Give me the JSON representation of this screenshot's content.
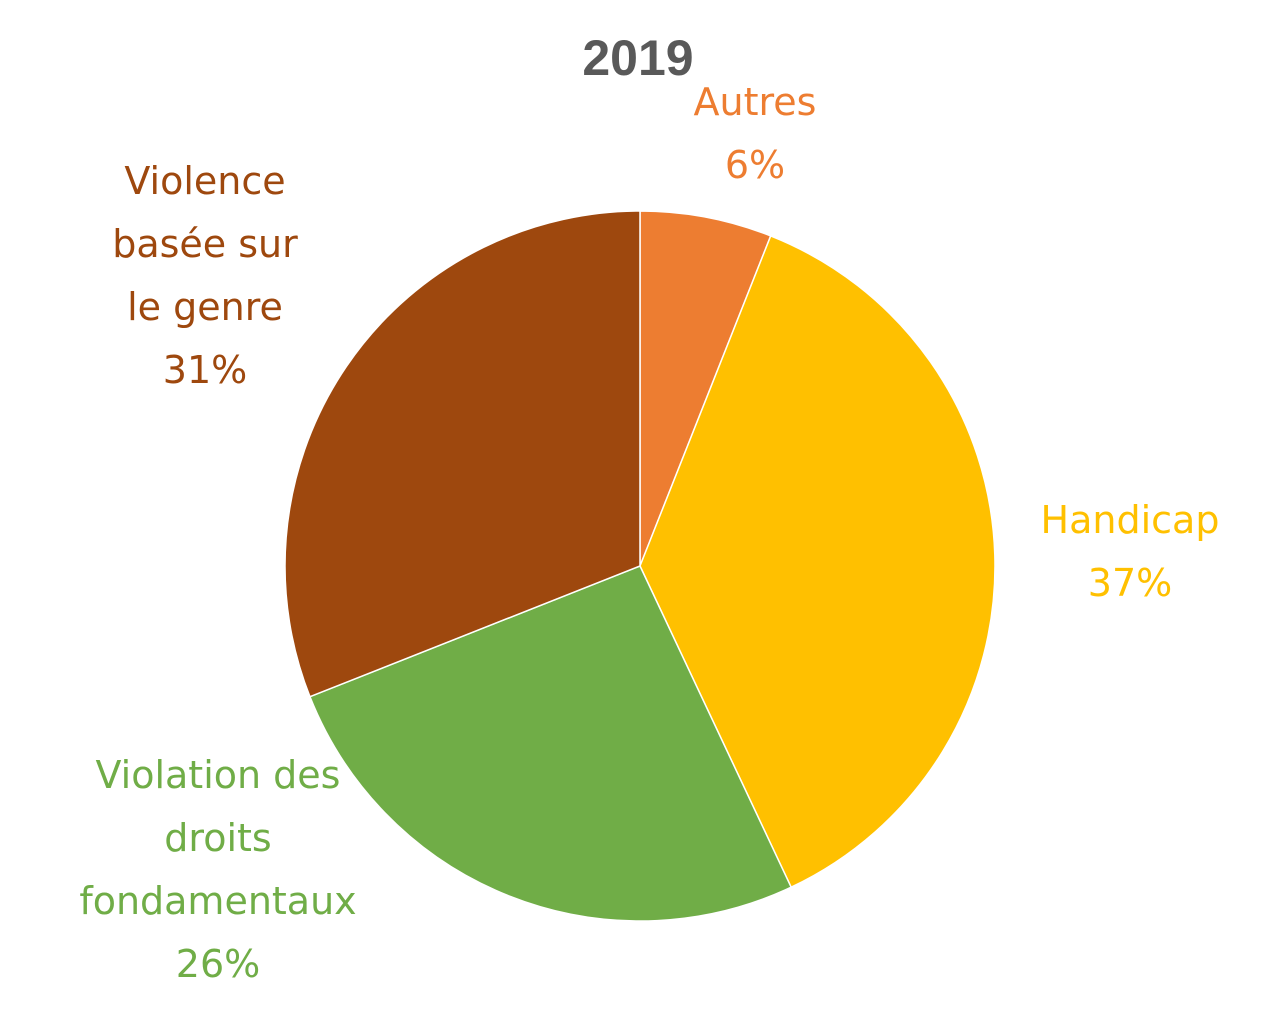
{
  "chart_data": {
    "type": "pie",
    "title": "2019",
    "start_angle_deg": 0,
    "direction": "clockwise",
    "slices": [
      {
        "name": "Autres",
        "value": 6,
        "percent_label": "6%",
        "color": "#ED7D31",
        "label_lines": [
          "Autres",
          "6%"
        ]
      },
      {
        "name": "Handicap",
        "value": 37,
        "percent_label": "37%",
        "color": "#FFC000",
        "label_lines": [
          "Handicap",
          "37%"
        ]
      },
      {
        "name": "Violation des droits fondamentaux",
        "value": 26,
        "percent_label": "26%",
        "color": "#70AD47",
        "label_lines": [
          "Violation des",
          "droits",
          "fondamentaux",
          "26%"
        ]
      },
      {
        "name": "Violence basée sur le genre",
        "value": 31,
        "percent_label": "31%",
        "color": "#9E480E",
        "label_lines": [
          "Violence",
          "basée sur",
          "le genre",
          "31%"
        ]
      }
    ]
  }
}
